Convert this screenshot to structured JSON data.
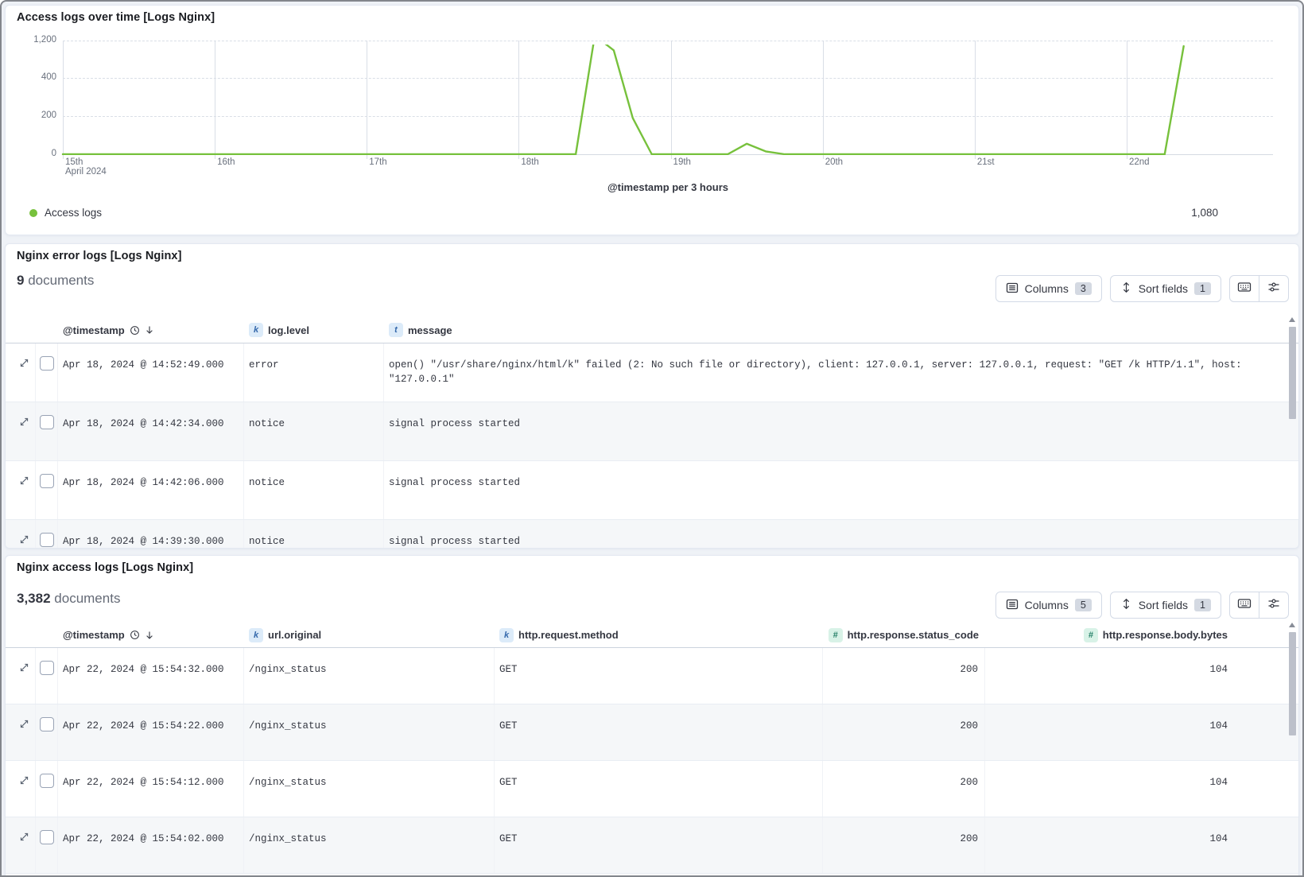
{
  "chart_panel": {
    "title": "Access logs over time [Logs Nginx]"
  },
  "chart_data": {
    "type": "line",
    "title": "Access logs over time [Logs Nginx]",
    "xlabel": "@timestamp per 3 hours",
    "x_ticks": [
      "15th",
      "16th",
      "17th",
      "18th",
      "19th",
      "20th",
      "21st",
      "22nd"
    ],
    "x_context": "April 2024",
    "y_ticks": [
      "0",
      "200",
      "400",
      "1,200"
    ],
    "y_tick_values": [
      0,
      200,
      400,
      1200
    ],
    "legend_position": "bottom",
    "grid": true,
    "series": [
      {
        "name": "Access logs",
        "color": "#77C13C",
        "legend_value": "1,080",
        "note": "x = hours since Apr 15 2024 00:00, 3-hour buckets; value is 0 everywhere except listed vertices; main peak exceeds the top axis tick and is clipped",
        "points_hours_value": [
          [
            0,
            0
          ],
          [
            81,
            0
          ],
          [
            84,
            1305
          ],
          [
            87,
            990
          ],
          [
            90,
            190
          ],
          [
            93,
            0
          ],
          [
            105,
            0
          ],
          [
            108,
            55
          ],
          [
            111,
            15
          ],
          [
            114,
            0
          ],
          [
            174,
            0
          ],
          [
            177,
            1080
          ]
        ]
      }
    ]
  },
  "error_panel": {
    "title": "Nginx error logs [Logs Nginx]",
    "doc_count": "9",
    "doc_label": "documents",
    "toolbar": {
      "columns_label": "Columns",
      "columns_count": "3",
      "sort_label": "Sort fields",
      "sort_count": "1"
    },
    "columns": [
      {
        "token": "",
        "label": "@timestamp",
        "sorted": true
      },
      {
        "token": "k",
        "label": "log.level"
      },
      {
        "token": "t",
        "label": "message"
      }
    ],
    "rows": [
      {
        "timestamp": "Apr 18, 2024 @ 14:52:49.000",
        "level": "error",
        "message": "open() \"/usr/share/nginx/html/k\" failed (2: No such file or directory), client: 127.0.0.1, server: 127.0.0.1, request: \"GET /k HTTP/1.1\", host: \"127.0.0.1\""
      },
      {
        "timestamp": "Apr 18, 2024 @ 14:42:34.000",
        "level": "notice",
        "message": "signal process started"
      },
      {
        "timestamp": "Apr 18, 2024 @ 14:42:06.000",
        "level": "notice",
        "message": "signal process started"
      },
      {
        "timestamp": "Apr 18, 2024 @ 14:39:30.000",
        "level": "notice",
        "message": "signal process started"
      }
    ]
  },
  "access_panel": {
    "title": "Nginx access logs [Logs Nginx]",
    "doc_count": "3,382",
    "doc_label": "documents",
    "toolbar": {
      "columns_label": "Columns",
      "columns_count": "5",
      "sort_label": "Sort fields",
      "sort_count": "1"
    },
    "columns": [
      {
        "token": "",
        "label": "@timestamp",
        "sorted": true
      },
      {
        "token": "k",
        "label": "url.original"
      },
      {
        "token": "k",
        "label": "http.request.method"
      },
      {
        "token": "#",
        "label": "http.response.status_code",
        "numeric": true
      },
      {
        "token": "#",
        "label": "http.response.body.bytes",
        "numeric": true
      }
    ],
    "rows": [
      {
        "timestamp": "Apr 22, 2024 @ 15:54:32.000",
        "url": "/nginx_status",
        "method": "GET",
        "status": "200",
        "bytes": "104"
      },
      {
        "timestamp": "Apr 22, 2024 @ 15:54:22.000",
        "url": "/nginx_status",
        "method": "GET",
        "status": "200",
        "bytes": "104"
      },
      {
        "timestamp": "Apr 22, 2024 @ 15:54:12.000",
        "url": "/nginx_status",
        "method": "GET",
        "status": "200",
        "bytes": "104"
      },
      {
        "timestamp": "Apr 22, 2024 @ 15:54:02.000",
        "url": "/nginx_status",
        "method": "GET",
        "status": "200",
        "bytes": "104"
      }
    ]
  },
  "colors": {
    "series_green": "#77C13C",
    "zebra_row": "#f5f7f9",
    "grid_line": "#d9dee6",
    "token_keyword_bg": "#dcebf9",
    "token_keyword_fg": "#3468ab",
    "token_number_bg": "#d8f2e7",
    "token_number_fg": "#29826a",
    "text_primary": "#343741",
    "text_subdued": "#69707d"
  }
}
